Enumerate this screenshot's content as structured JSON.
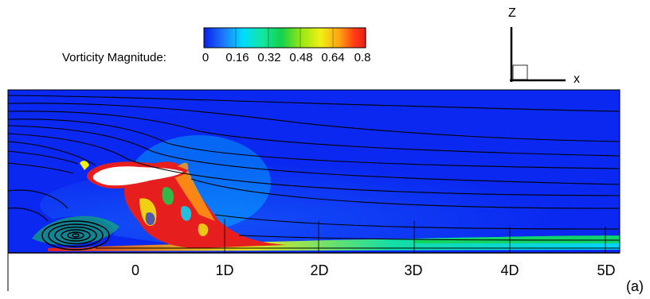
{
  "colorbar": {
    "title": "Vorticity Magnitude:",
    "ticks": [
      "0",
      "0.16",
      "0.32",
      "0.48",
      "0.64",
      "0.8"
    ],
    "min": 0,
    "max": 0.8,
    "colors": [
      "#0a1ee6",
      "#1e78ff",
      "#00dcff",
      "#14e6a0",
      "#14d24b",
      "#96e614",
      "#f0f014",
      "#ffa014",
      "#ff3c14",
      "#e61e1e"
    ]
  },
  "axes": {
    "z_label": "Z",
    "x_label": "x"
  },
  "x_ticks": [
    "0",
    "1D",
    "2D",
    "3D",
    "4D",
    "5D"
  ],
  "panel_label": "(a)",
  "field": {
    "background_color": "#0a28f0",
    "high_color": "#e61e1e"
  }
}
